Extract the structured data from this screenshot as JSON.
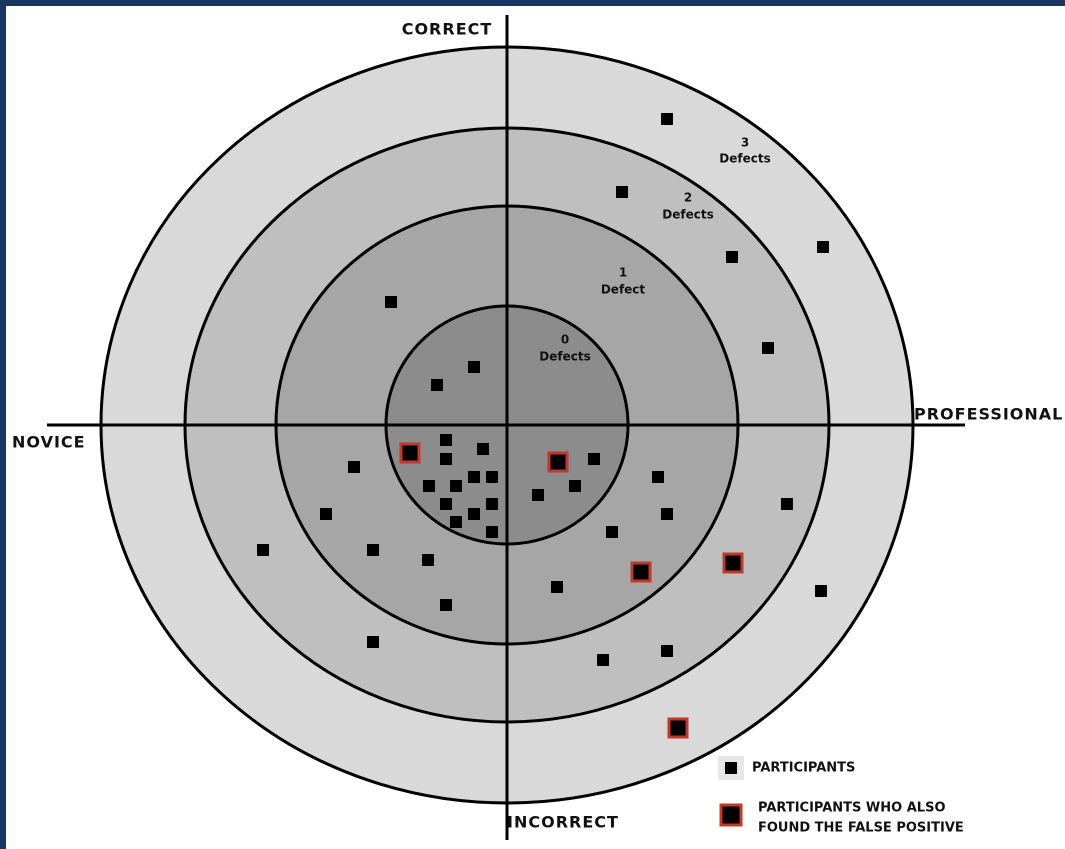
{
  "axes": {
    "top": "CORRECT",
    "bottom": "INCORRECT",
    "left": "NOVICE",
    "right": "PROFESSIONAL"
  },
  "rings": [
    {
      "count": "3",
      "label": "Defects"
    },
    {
      "count": "2",
      "label": "Defects"
    },
    {
      "count": "1",
      "label": "Defect"
    },
    {
      "count": "0",
      "label": "Defects"
    }
  ],
  "legend": {
    "participants": "PARTICIPANTS",
    "false_positive_line1": "PARTICIPANTS WHO ALSO",
    "false_positive_line2": "FOUND THE FALSE POSITIVE"
  }
}
